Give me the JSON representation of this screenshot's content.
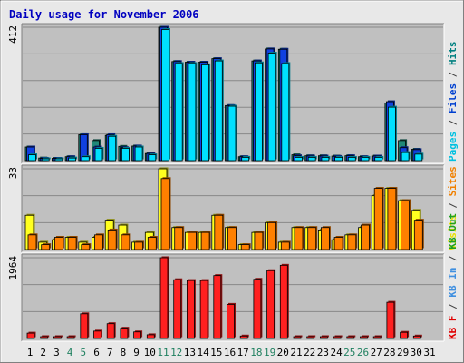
{
  "chart_data": {
    "type": "bar",
    "title": "Daily usage for November 2006",
    "categories": [
      "1",
      "2",
      "3",
      "4",
      "5",
      "6",
      "7",
      "8",
      "9",
      "10",
      "11",
      "12",
      "13",
      "14",
      "15",
      "16",
      "17",
      "18",
      "19",
      "20",
      "21",
      "22",
      "23",
      "24",
      "25",
      "26",
      "27",
      "28",
      "29",
      "30",
      "31"
    ],
    "weekend_days": [
      "4",
      "5",
      "11",
      "12",
      "18",
      "19",
      "25",
      "26"
    ],
    "panels": [
      {
        "id": "top",
        "ymax_label": "412",
        "ymax": 412,
        "legend": [
          {
            "text": "Pages",
            "color": "#00c0e0"
          },
          {
            "text": " / ",
            "color": "#404040"
          },
          {
            "text": "Files",
            "color": "#0040d0"
          },
          {
            "text": " / ",
            "color": "#404040"
          },
          {
            "text": "Hits",
            "color": "#008080"
          }
        ],
        "series": [
          {
            "name": "Hits",
            "color": "#208878",
            "values": [
              42,
              8,
              7,
              12,
              80,
              62,
              78,
              44,
              45,
              22,
              412,
              306,
              304,
              304,
              315,
              170,
              12,
              308,
              345,
              344,
              18,
              15,
              15,
              14,
              15,
              12,
              14,
              178,
              62,
              35,
              0
            ]
          },
          {
            "name": "Files",
            "color": "#1040e0",
            "values": [
              42,
              7,
              7,
              12,
              80,
              42,
              80,
              40,
              45,
              22,
              412,
              306,
              304,
              304,
              315,
              170,
              12,
              308,
              345,
              344,
              15,
              14,
              14,
              13,
              15,
              12,
              14,
              182,
              40,
              34,
              0
            ]
          },
          {
            "name": "Pages",
            "color": "#00e0ff",
            "values": [
              18,
              5,
              5,
              8,
              12,
              38,
              75,
              38,
              42,
              18,
              405,
              300,
              300,
              296,
              308,
              168,
              10,
              302,
              332,
              300,
              10,
              10,
              10,
              10,
              10,
              10,
              10,
              165,
              25,
              20,
              0
            ]
          }
        ]
      },
      {
        "id": "middle",
        "ymax_label": "33",
        "ymax": 33,
        "legend": [
          {
            "text": "Visits",
            "color": "#e8e000"
          },
          {
            "text": " / ",
            "color": "#404040"
          },
          {
            "text": "Sites",
            "color": "#f08000"
          }
        ],
        "series": [
          {
            "name": "Visits",
            "color": "#ffff20",
            "values": [
              14,
              3,
              4,
              5,
              3,
              5,
              12,
              10,
              3,
              7,
              33,
              9,
              7,
              7,
              14,
              9,
              2,
              7,
              11,
              3,
              9,
              9,
              8,
              4,
              6,
              9,
              22,
              25,
              20,
              16,
              0
            ]
          },
          {
            "name": "Sites",
            "color": "#ff8000",
            "values": [
              6,
              2,
              5,
              5,
              2,
              6,
              8,
              6,
              3,
              5,
              29,
              9,
              7,
              7,
              14,
              9,
              2,
              7,
              11,
              3,
              9,
              9,
              9,
              5,
              6,
              10,
              25,
              25,
              20,
              12,
              0
            ]
          }
        ]
      },
      {
        "id": "bottom",
        "ymax_label": "1964",
        "ymax": 1964,
        "legend": [
          {
            "text": "KB F",
            "color": "#e00000"
          },
          {
            "text": " / ",
            "color": "#404040"
          },
          {
            "text": "KB In",
            "color": "#4090e0"
          },
          {
            "text": " / ",
            "color": "#404040"
          },
          {
            "text": "KB Out",
            "color": "#20a020"
          }
        ],
        "series": [
          {
            "name": "KB F",
            "color": "#ff2020",
            "values": [
              130,
              30,
              30,
              30,
              600,
              180,
              360,
              250,
              160,
              90,
              1964,
              1430,
              1410,
              1410,
              1530,
              830,
              60,
              1440,
              1650,
              1780,
              40,
              40,
              40,
              40,
              40,
              40,
              40,
              880,
              150,
              60,
              0
            ]
          }
        ]
      }
    ]
  }
}
